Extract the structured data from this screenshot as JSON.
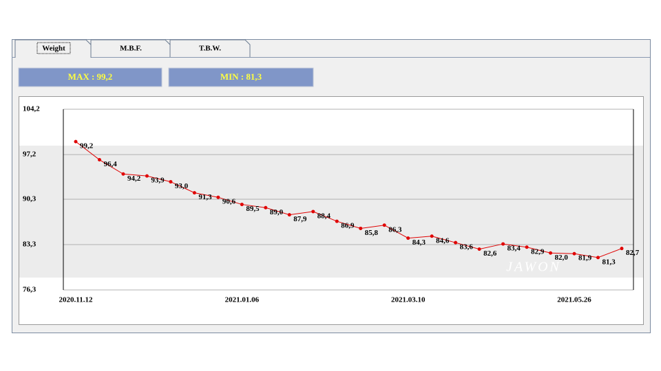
{
  "tabs": [
    "Weight",
    "M.B.F.",
    "T.B.W."
  ],
  "stats": [
    "MAX : 99,2",
    "MIN : 81,3"
  ],
  "watermark": "JAWON",
  "chart_data": {
    "type": "line",
    "categories": [
      "2020.11.12",
      null,
      null,
      null,
      null,
      null,
      null,
      "2021.01.06",
      null,
      null,
      null,
      null,
      null,
      null,
      "2021.03.10",
      null,
      null,
      null,
      null,
      null,
      null,
      "2021.05.26",
      null,
      null
    ],
    "series": [
      {
        "color": "#e00000",
        "values": [
          99.2,
          96.4,
          94.2,
          93.9,
          93.0,
          91.3,
          90.6,
          89.5,
          89.0,
          87.9,
          88.4,
          86.9,
          85.8,
          86.3,
          84.3,
          84.6,
          83.6,
          82.6,
          83.4,
          82.9,
          82.0,
          81.9,
          81.3,
          82.7
        ],
        "value_labels": [
          "99,2",
          "96,4",
          "94,2",
          "93,9",
          "93,0",
          "91,3",
          "90,6",
          "89,5",
          "89,0",
          "87,9",
          "88,4",
          "86,9",
          "85,8",
          "86,3",
          "84,3",
          "84,6",
          "83,6",
          "82,6",
          "83,4",
          "82,9",
          "82,0",
          "81,9",
          "81,3",
          "82,7"
        ]
      }
    ],
    "ylim": [
      76.3,
      104.2
    ],
    "yticks": [
      {
        "value": 76.3,
        "label": "76,3"
      },
      {
        "value": 83.3,
        "label": "83,3"
      },
      {
        "value": 90.3,
        "label": "90,3"
      },
      {
        "value": 97.2,
        "label": "97,2"
      },
      {
        "value": 104.2,
        "label": "104,2"
      }
    ],
    "grid": true
  }
}
